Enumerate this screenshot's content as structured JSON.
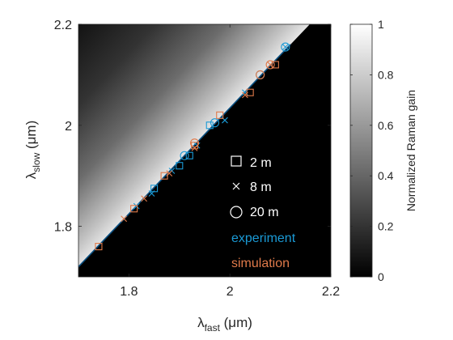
{
  "chart_data": {
    "type": "heatmap",
    "xlabel_main": "λ",
    "xlabel_sub": "fast",
    "xlabel_unit": " (μm)",
    "ylabel_main": "λ",
    "ylabel_sub": "slow",
    "ylabel_unit": " (μm)",
    "xlim": [
      1.7,
      2.2
    ],
    "ylim": [
      1.7,
      2.2
    ],
    "xticks": [
      1.8,
      2.0,
      2.2
    ],
    "xtick_labels": [
      "1.8",
      "2",
      "2.2"
    ],
    "yticks": [
      1.8,
      2.0,
      2.2
    ],
    "ytick_labels": [
      "1.8",
      "2",
      "2.2"
    ],
    "colorbar": {
      "label": "Normalized Raman gain",
      "range": [
        0,
        1
      ],
      "ticks": [
        0,
        0.2,
        0.4,
        0.6,
        0.8,
        1
      ],
      "tick_labels": [
        "0",
        "0.2",
        "0.4",
        "0.6",
        "0.8",
        "1"
      ],
      "colormap": "gray"
    },
    "gain_boundary_line": [
      [
        1.7,
        1.72
      ],
      [
        2.12,
        2.16
      ]
    ],
    "legend": {
      "placement": "inside-lower-right",
      "markers": [
        {
          "symbol": "square",
          "label": "2 m"
        },
        {
          "symbol": "cross",
          "label": "8 m"
        },
        {
          "symbol": "circle",
          "label": "20 m"
        }
      ],
      "sources": [
        {
          "label": "experiment",
          "color": "#1a9ad6"
        },
        {
          "label": "simulation",
          "color": "#e07a4a"
        }
      ]
    },
    "series": [
      {
        "source": "experiment",
        "marker": "square",
        "x": [
          1.85,
          1.9,
          1.92,
          1.96
        ],
        "y": [
          1.875,
          1.92,
          1.94,
          2.0
        ]
      },
      {
        "source": "experiment",
        "marker": "cross",
        "x": [
          1.815,
          1.845,
          1.885,
          1.935,
          1.99,
          2.03,
          2.11
        ],
        "y": [
          1.84,
          1.865,
          1.91,
          1.96,
          2.01,
          2.065,
          2.155
        ]
      },
      {
        "source": "experiment",
        "marker": "circle",
        "x": [
          1.91,
          1.97,
          2.06,
          2.11
        ],
        "y": [
          1.94,
          2.005,
          2.1,
          2.155
        ]
      },
      {
        "source": "simulation",
        "marker": "square",
        "x": [
          1.74,
          1.81,
          1.87,
          1.93,
          1.98,
          2.04,
          2.09
        ],
        "y": [
          1.76,
          1.835,
          1.9,
          1.96,
          2.02,
          2.065,
          2.12
        ]
      },
      {
        "source": "simulation",
        "marker": "cross",
        "x": [
          1.79,
          1.83,
          1.88,
          1.93,
          2.03,
          2.08
        ],
        "y": [
          1.815,
          1.855,
          1.905,
          1.955,
          2.06,
          2.12
        ]
      },
      {
        "source": "simulation",
        "marker": "circle",
        "x": [
          1.93,
          2.06,
          2.08
        ],
        "y": [
          1.965,
          2.1,
          2.12
        ]
      }
    ]
  }
}
